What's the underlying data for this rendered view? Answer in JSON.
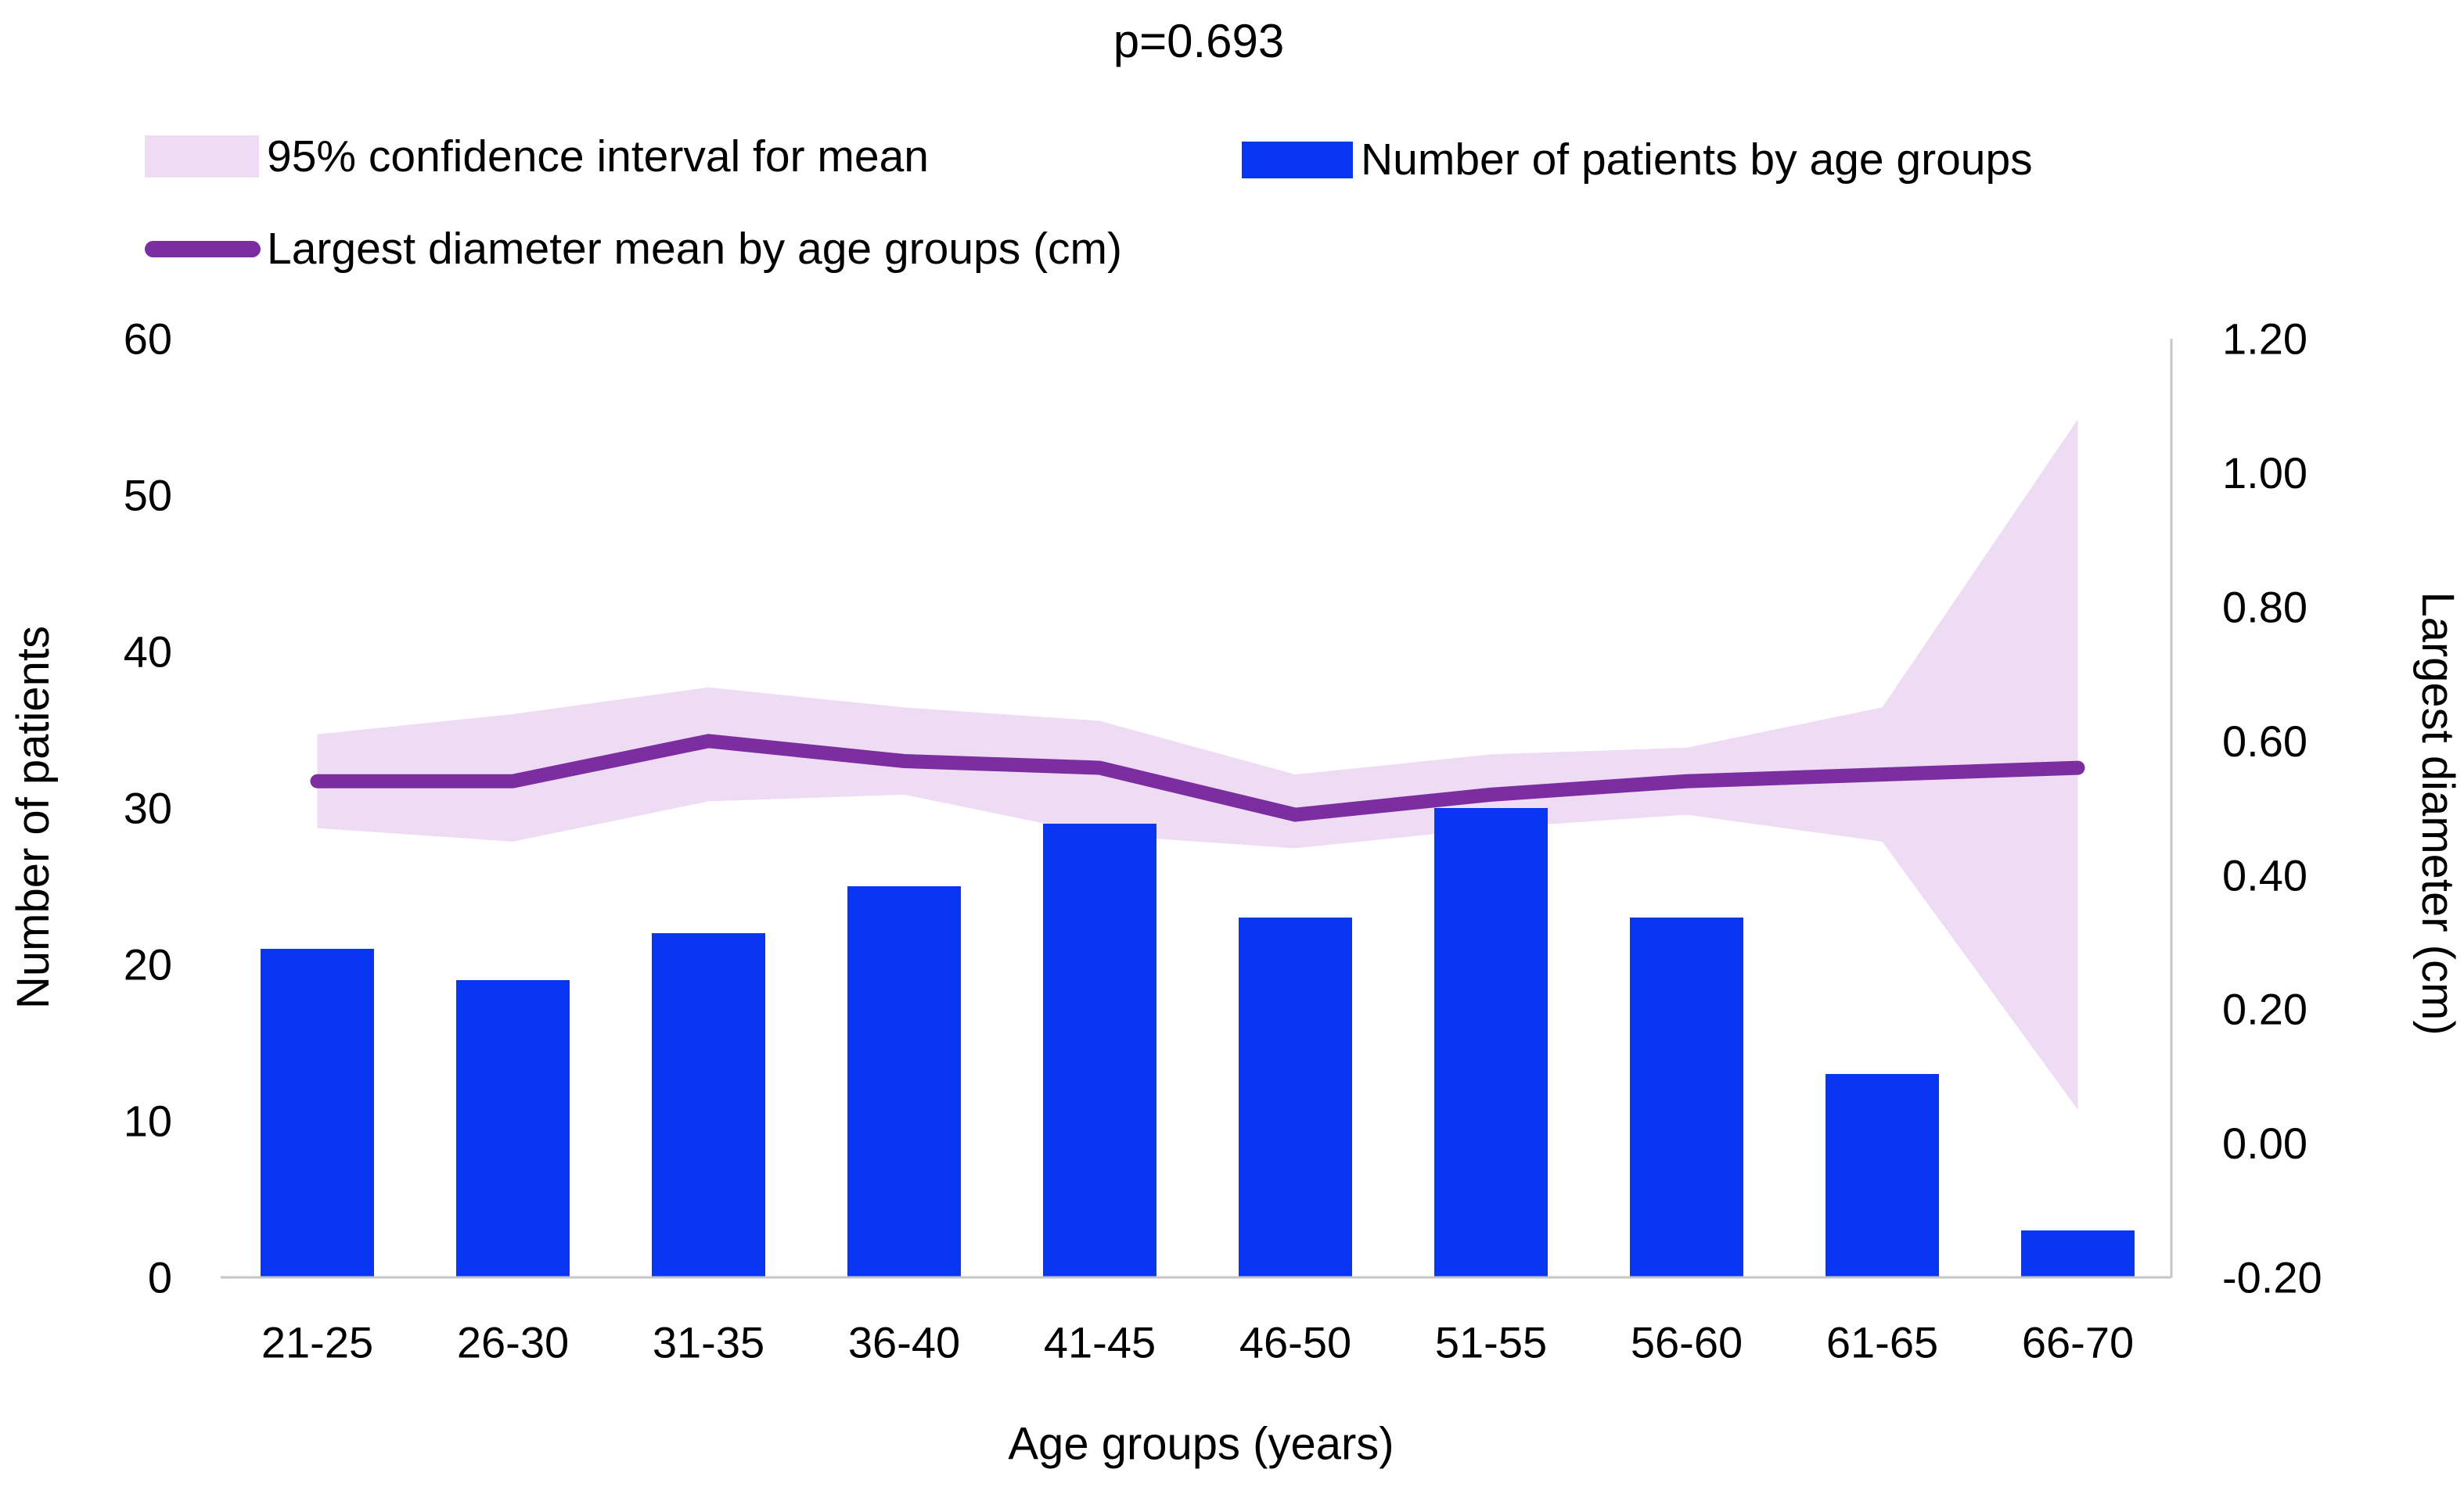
{
  "title": "p=0.693",
  "legend": {
    "items": [
      {
        "label": "95% confidence interval for mean"
      },
      {
        "label": "Number of patients by age groups"
      },
      {
        "label": "Largest diameter mean by age groups (cm)"
      }
    ]
  },
  "colors": {
    "bar_blue": "#0836f2",
    "line_purple": "#7c2ea0",
    "band_lavender": "#eedbf4",
    "axis_gray": "#c6c6c6",
    "text": "#000000",
    "background": "#ffffff"
  },
  "chart_data": {
    "type": "bar",
    "subtype": "combo-bar-line-confidence-band",
    "title": "p=0.693",
    "categories": [
      "21-25",
      "26-30",
      "31-35",
      "36-40",
      "41-45",
      "46-50",
      "51-55",
      "56-60",
      "61-65",
      "66-70"
    ],
    "series": [
      {
        "name": "Number of patients by age groups",
        "type": "bar",
        "axis": "left",
        "values": [
          21,
          19,
          22,
          25,
          29,
          23,
          30,
          23,
          13,
          3
        ]
      },
      {
        "name": "Largest diameter mean by age groups (cm)",
        "type": "line",
        "axis": "right",
        "values": [
          0.54,
          0.54,
          0.6,
          0.57,
          0.56,
          0.49,
          0.52,
          0.54,
          0.55,
          0.56
        ]
      },
      {
        "name": "95% confidence interval for mean",
        "type": "band",
        "axis": "right",
        "upper": [
          0.61,
          0.64,
          0.68,
          0.65,
          0.63,
          0.55,
          0.58,
          0.59,
          0.65,
          1.08
        ],
        "lower": [
          0.47,
          0.45,
          0.51,
          0.52,
          0.46,
          0.44,
          0.47,
          0.49,
          0.45,
          0.05
        ]
      }
    ],
    "left_axis": {
      "title": "Number of patients",
      "min": 0,
      "max": 60,
      "tick_labels": [
        "60",
        "50",
        "40",
        "30",
        "20",
        "10",
        "0"
      ],
      "tick_values": [
        60,
        50,
        40,
        30,
        20,
        10,
        0
      ]
    },
    "right_axis": {
      "title": "Largest diameter (cm)",
      "min": -0.2,
      "max": 1.2,
      "tick_labels": [
        "1.20",
        "1.00",
        "0.80",
        "0.60",
        "0.40",
        "0.20",
        "0.00",
        "-0.20"
      ],
      "tick_values": [
        1.2,
        1.0,
        0.8,
        0.6,
        0.4,
        0.2,
        0.0,
        -0.2
      ]
    },
    "x_axis": {
      "title": "Age groups (years)"
    },
    "grid": false,
    "legend_position": "top"
  }
}
